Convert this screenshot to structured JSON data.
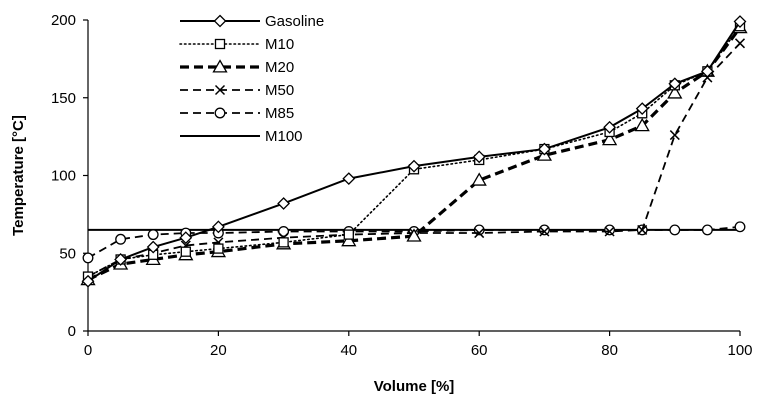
{
  "chart_data": {
    "type": "line",
    "title": "",
    "xlabel": "Volume [%]",
    "ylabel": "Temperature [°C]",
    "xlim": [
      0,
      100
    ],
    "ylim": [
      0,
      200
    ],
    "x_ticks": [
      0,
      20,
      40,
      60,
      80,
      100
    ],
    "y_ticks": [
      0,
      50,
      100,
      150,
      200
    ],
    "grid": false,
    "legend_position": "top-left",
    "series": [
      {
        "name": "Gasoline",
        "color": "#000000",
        "line_style": "solid",
        "marker": "diamond",
        "points": [
          {
            "x": 0,
            "y": 32
          },
          {
            "x": 5,
            "y": 46
          },
          {
            "x": 10,
            "y": 54
          },
          {
            "x": 15,
            "y": 60
          },
          {
            "x": 20,
            "y": 67
          },
          {
            "x": 30,
            "y": 82
          },
          {
            "x": 40,
            "y": 98
          },
          {
            "x": 50,
            "y": 106
          },
          {
            "x": 60,
            "y": 112
          },
          {
            "x": 70,
            "y": 117
          },
          {
            "x": 80,
            "y": 131
          },
          {
            "x": 85,
            "y": 143
          },
          {
            "x": 90,
            "y": 159
          },
          {
            "x": 95,
            "y": 167
          },
          {
            "x": 100,
            "y": 199
          }
        ]
      },
      {
        "name": "M10",
        "color": "#000000",
        "line_style": "dotted",
        "marker": "square",
        "points": [
          {
            "x": 0,
            "y": 35
          },
          {
            "x": 5,
            "y": 46
          },
          {
            "x": 10,
            "y": 49
          },
          {
            "x": 15,
            "y": 51
          },
          {
            "x": 20,
            "y": 53
          },
          {
            "x": 30,
            "y": 57
          },
          {
            "x": 40,
            "y": 62
          },
          {
            "x": 50,
            "y": 104
          },
          {
            "x": 60,
            "y": 110
          },
          {
            "x": 70,
            "y": 117
          },
          {
            "x": 80,
            "y": 128
          },
          {
            "x": 85,
            "y": 140
          },
          {
            "x": 90,
            "y": 158
          },
          {
            "x": 95,
            "y": 167
          },
          {
            "x": 100,
            "y": 196
          }
        ]
      },
      {
        "name": "M20",
        "color": "#000000",
        "line_style": "dashed-heavy",
        "marker": "triangle",
        "points": [
          {
            "x": 0,
            "y": 33
          },
          {
            "x": 5,
            "y": 43
          },
          {
            "x": 10,
            "y": 46
          },
          {
            "x": 15,
            "y": 49
          },
          {
            "x": 20,
            "y": 51
          },
          {
            "x": 30,
            "y": 56
          },
          {
            "x": 40,
            "y": 58
          },
          {
            "x": 50,
            "y": 61
          },
          {
            "x": 60,
            "y": 97
          },
          {
            "x": 70,
            "y": 113
          },
          {
            "x": 80,
            "y": 123
          },
          {
            "x": 85,
            "y": 132
          },
          {
            "x": 90,
            "y": 153
          },
          {
            "x": 95,
            "y": 167
          },
          {
            "x": 100,
            "y": 195
          }
        ]
      },
      {
        "name": "M50",
        "color": "#000000",
        "line_style": "dashed",
        "marker": "x",
        "points": [
          {
            "x": 0,
            "y": 35
          },
          {
            "x": 5,
            "y": 46
          },
          {
            "x": 10,
            "y": 50
          },
          {
            "x": 15,
            "y": 55
          },
          {
            "x": 20,
            "y": 57
          },
          {
            "x": 30,
            "y": 60
          },
          {
            "x": 40,
            "y": 62
          },
          {
            "x": 50,
            "y": 63
          },
          {
            "x": 60,
            "y": 63
          },
          {
            "x": 70,
            "y": 64
          },
          {
            "x": 80,
            "y": 64
          },
          {
            "x": 85,
            "y": 65
          },
          {
            "x": 90,
            "y": 126
          },
          {
            "x": 95,
            "y": 163
          },
          {
            "x": 100,
            "y": 185
          }
        ]
      },
      {
        "name": "M85",
        "color": "#000000",
        "line_style": "dashed",
        "marker": "circle",
        "points": [
          {
            "x": 0,
            "y": 47
          },
          {
            "x": 5,
            "y": 59
          },
          {
            "x": 10,
            "y": 62
          },
          {
            "x": 15,
            "y": 63
          },
          {
            "x": 20,
            "y": 63
          },
          {
            "x": 30,
            "y": 64
          },
          {
            "x": 40,
            "y": 64
          },
          {
            "x": 50,
            "y": 64
          },
          {
            "x": 60,
            "y": 65
          },
          {
            "x": 70,
            "y": 65
          },
          {
            "x": 80,
            "y": 65
          },
          {
            "x": 85,
            "y": 65
          },
          {
            "x": 90,
            "y": 65
          },
          {
            "x": 95,
            "y": 65
          },
          {
            "x": 100,
            "y": 67
          }
        ]
      },
      {
        "name": "M100",
        "color": "#000000",
        "line_style": "solid",
        "marker": "none",
        "points": [
          {
            "x": 0,
            "y": 65
          },
          {
            "x": 100,
            "y": 65
          }
        ]
      }
    ]
  }
}
